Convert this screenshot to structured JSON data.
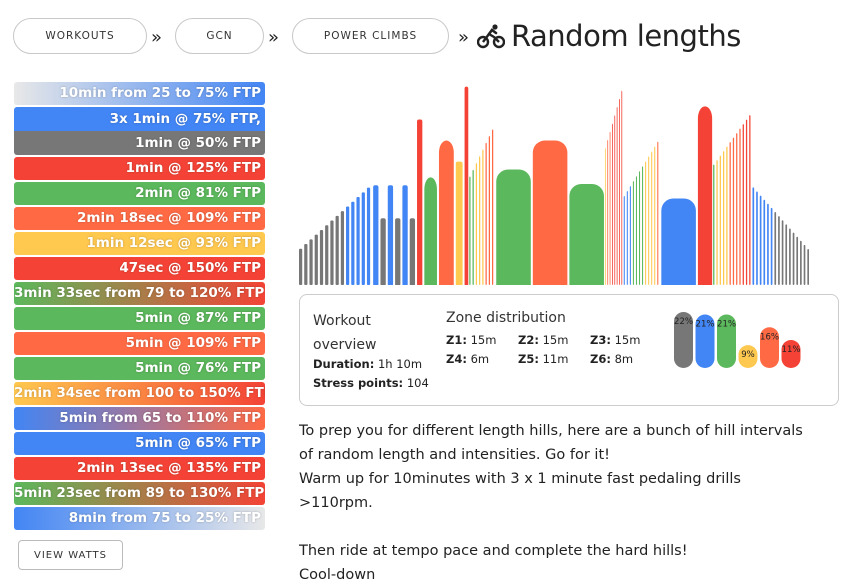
{
  "breadcrumb": {
    "items": [
      "WORKOUTS",
      "GCN",
      "POWER CLIMBS"
    ],
    "separator": "»"
  },
  "title": "Random lengths",
  "title_icon": "cyclist-icon",
  "intervals": [
    {
      "label": "10min from 25 to 75% FTP",
      "color": "#4285f4",
      "gradient_from": "#e8e8e8"
    },
    {
      "label_lines": [
        "3x 1min @ 75% FTP,",
        "1min @ 50% FTP"
      ],
      "colors": [
        "#4285f4",
        "#777777"
      ]
    },
    {
      "label": "1min @ 125% FTP",
      "color": "#f44336"
    },
    {
      "label": "2min @ 81% FTP",
      "color": "#5cb85c"
    },
    {
      "label": "2min 18sec @ 109% FTP",
      "color": "#ff6a45"
    },
    {
      "label": "1min 12sec @ 93% FTP",
      "color": "#ffc84f"
    },
    {
      "label": "47sec @ 150% FTP",
      "color": "#f44336"
    },
    {
      "label": "3min 33sec from 79 to 120% FTP",
      "color": "#f44336",
      "gradient_from": "#5cb85c"
    },
    {
      "label": "5min @ 87% FTP",
      "color": "#5cb85c"
    },
    {
      "label": "5min @ 109% FTP",
      "color": "#ff6a45"
    },
    {
      "label": "5min @ 76% FTP",
      "color": "#5cb85c"
    },
    {
      "label": "2min 34sec from 100 to 150% FTP",
      "color": "#f44336",
      "gradient_from": "#ffc84f"
    },
    {
      "label": "5min from 65 to 110% FTP",
      "color": "#ff6a45",
      "gradient_from": "#4285f4"
    },
    {
      "label": "5min @ 65% FTP",
      "color": "#4285f4"
    },
    {
      "label": "2min 13sec @ 135% FTP",
      "color": "#f44336"
    },
    {
      "label": "5min 23sec from 89 to 130% FTP",
      "color": "#f44336",
      "gradient_from": "#5cb85c"
    },
    {
      "label": "8min from 75 to 25% FTP",
      "color": "#e8e8e8",
      "gradient_from": "#4285f4"
    }
  ],
  "view_watts_label": "VIEW WATTS",
  "overview": {
    "heading": "Workout overview",
    "duration_label": "Duration:",
    "duration_value": "1h 10m",
    "stress_label": "Stress points:",
    "stress_value": "104",
    "zone_heading": "Zone distribution",
    "zones": [
      {
        "label": "Z1:",
        "value": "15m"
      },
      {
        "label": "Z2:",
        "value": "15m"
      },
      {
        "label": "Z3:",
        "value": "15m"
      },
      {
        "label": "Z4:",
        "value": "6m"
      },
      {
        "label": "Z5:",
        "value": "11m"
      },
      {
        "label": "Z6:",
        "value": "8m"
      }
    ]
  },
  "chart_data": [
    {
      "type": "bar",
      "name": "zone-distribution",
      "categories": [
        "Z1",
        "Z2",
        "Z3",
        "Z4",
        "Z5",
        "Z6"
      ],
      "values": [
        22,
        21,
        21,
        9,
        16,
        11
      ],
      "labels": [
        "22%",
        "21%",
        "21%",
        "9%",
        "16%",
        "11%"
      ],
      "colors": [
        "#777777",
        "#4285f4",
        "#5cb85c",
        "#ffc84f",
        "#ff6a45",
        "#f44336"
      ]
    },
    {
      "type": "bar",
      "name": "workout-profile",
      "x_unit": "minutes",
      "y_unit": "% FTP",
      "ylim": [
        0,
        155
      ],
      "segments": [
        {
          "duration": 10,
          "from": 25,
          "to": 75,
          "steps": 14
        },
        {
          "duration": 1,
          "power": 75
        },
        {
          "duration": 1,
          "power": 50
        },
        {
          "duration": 1,
          "power": 75
        },
        {
          "duration": 1,
          "power": 50
        },
        {
          "duration": 1,
          "power": 75
        },
        {
          "duration": 1,
          "power": 50
        },
        {
          "duration": 1,
          "power": 125
        },
        {
          "duration": 2,
          "power": 81
        },
        {
          "duration": 2.3,
          "power": 109
        },
        {
          "duration": 1.2,
          "power": 93
        },
        {
          "duration": 0.78,
          "power": 150
        },
        {
          "duration": 3.55,
          "from": 79,
          "to": 120,
          "steps": 8
        },
        {
          "duration": 5,
          "power": 87
        },
        {
          "duration": 5,
          "power": 109
        },
        {
          "duration": 5,
          "power": 76
        },
        {
          "duration": 2.57,
          "from": 100,
          "to": 150,
          "steps": 8
        },
        {
          "duration": 5,
          "from": 65,
          "to": 110,
          "steps": 12
        },
        {
          "duration": 5,
          "power": 65
        },
        {
          "duration": 2.22,
          "power": 135
        },
        {
          "duration": 5.38,
          "from": 89,
          "to": 130,
          "steps": 12
        },
        {
          "duration": 8,
          "from": 75,
          "to": 25,
          "steps": 16
        }
      ]
    }
  ],
  "description": [
    "To prep you for different length hills, here are a bunch of hill intervals of random length and intensities. Go for it!",
    "Warm up for 10minutes with 3 x 1 minute fast pedaling drills >110rpm.",
    "",
    "Then ride at tempo pace and complete the hard hills!",
    "Cool-down"
  ]
}
